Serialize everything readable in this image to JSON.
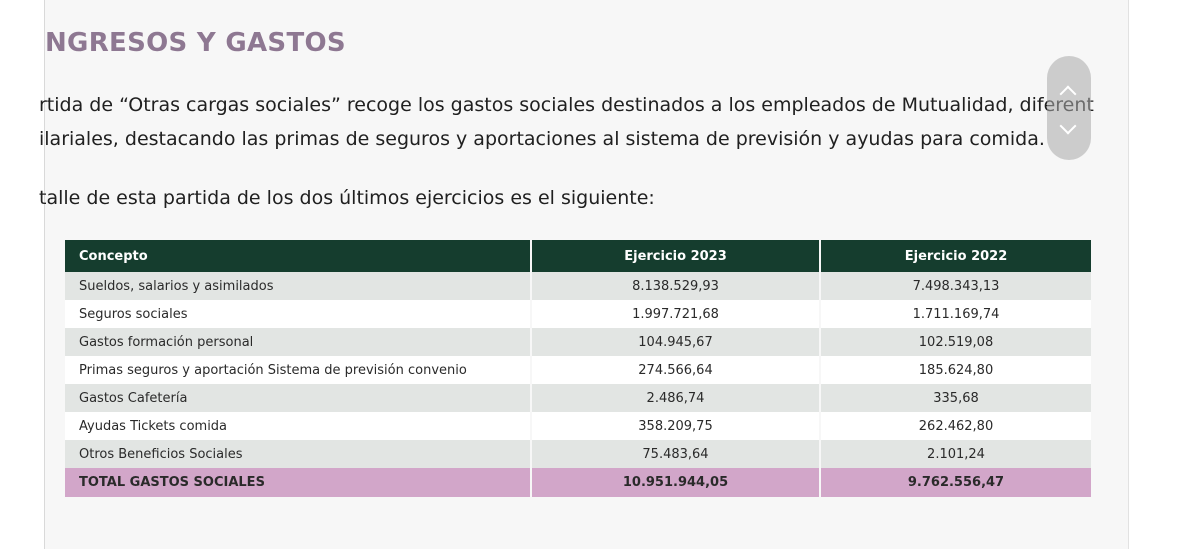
{
  "heading": "NGRESOS Y GASTOS",
  "paragraph": {
    "line1": "rtida de “Otras cargas sociales” recoge los gastos sociales destinados a los empleados de Mutualidad, diferent",
    "line2": "ilariales, destacando las primas de seguros y aportaciones al sistema de previsión y ayudas para comida.",
    "line3": "talle de esta partida de los dos últimos ejercicios es el siguiente:"
  },
  "table": {
    "headers": [
      "Concepto",
      "Ejercicio 2023",
      "Ejercicio 2022"
    ],
    "rows": [
      [
        "Sueldos, salarios y asimilados",
        "8.138.529,93",
        "7.498.343,13"
      ],
      [
        "Seguros sociales",
        "1.997.721,68",
        "1.711.169,74"
      ],
      [
        "Gastos formación personal",
        "104.945,67",
        "102.519,08"
      ],
      [
        "Primas seguros y aportación Sistema de previsión convenio",
        "274.566,64",
        "185.624,80"
      ],
      [
        "Gastos Cafetería",
        "2.486,74",
        "335,68"
      ],
      [
        "Ayudas Tickets comida",
        "358.209,75",
        "262.462,80"
      ],
      [
        "Otros Beneficios Sociales",
        "75.483,64",
        "2.101,24"
      ]
    ],
    "total": [
      "TOTAL GASTOS SOCIALES",
      "10.951.944,05",
      "9.762.556,47"
    ]
  },
  "colors": {
    "heading": "#8e7892",
    "header_bg": "#153d2e",
    "total_bg": "#d2a6c9",
    "stripe": "#e2e5e3"
  },
  "icons": {
    "scroll_up": "chevron-up-icon",
    "scroll_down": "chevron-down-icon"
  }
}
